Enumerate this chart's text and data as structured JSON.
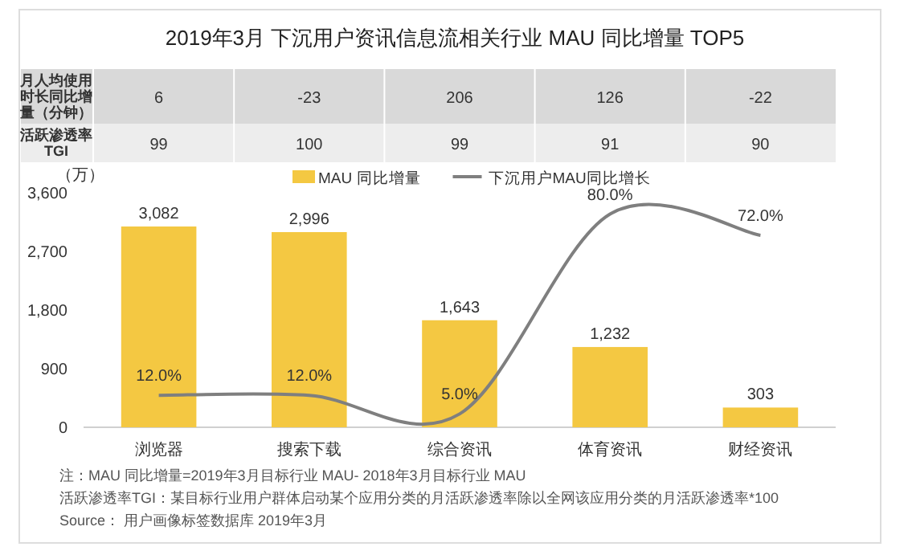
{
  "chart_data": [
    {
      "type": "other",
      "title": "2019年3月 下沉用户资讯信息流相关行业 MAU 同比增量 TOP5",
      "annotations": [
        "月人均使用时长同比增量（分钟）",
        "6",
        "-23",
        "206",
        "126",
        "-22",
        "活跃渗透率TGI",
        "99",
        "100",
        "99",
        "91",
        "90"
      ]
    },
    {
      "type": "bar",
      "ylabel": "（万）",
      "categories": [
        "浏览器",
        "搜索下载",
        "综合资讯",
        "体育资讯",
        "财经资讯"
      ],
      "series": [
        {
          "name": "MAU 同比增量",
          "color": "#f4c842",
          "values": [
            3082,
            2996,
            1643,
            1232,
            303
          ],
          "value_labels": [
            "3,082",
            "2,996",
            "1,643",
            "1,232",
            "303"
          ]
        },
        {
          "name": "下沉用户MAU同比增长",
          "type": "line",
          "axis": "y2",
          "color": "#7f7f7f",
          "values": [
            12,
            12,
            5,
            80,
            72
          ],
          "value_labels": [
            "12.0%",
            "12.0%",
            "5.0%",
            "80.0%",
            "72.0%"
          ]
        }
      ],
      "ylim": [
        0,
        3600
      ],
      "yticks": [
        {
          "value": 0,
          "label": "0"
        },
        {
          "value": 900,
          "label": "900"
        },
        {
          "value": 1800,
          "label": "1,800"
        },
        {
          "value": 2700,
          "label": "2,700"
        },
        {
          "value": 3600,
          "label": "3,600"
        }
      ],
      "legend": "top",
      "annotations": [
        "注：MAU 同比增量=2019年3月目标行业 MAU- 2018年3月目标行业 MAU",
        "活跃渗透率TGI：某目标行业用户群体启动某个应用分类的月活跃渗透率除以全网该应用分类的月活跃渗透率*100",
        "Source： 用户画像标签数据库 2019年3月"
      ]
    }
  ]
}
